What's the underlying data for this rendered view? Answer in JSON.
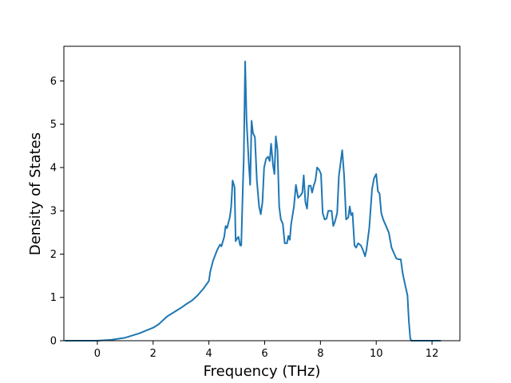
{
  "chart_data": {
    "type": "line",
    "title": "",
    "xlabel": "Frequency (THz)",
    "ylabel": "Density of States",
    "xlim": [
      -1.2,
      13.0
    ],
    "ylim": [
      0,
      6.8
    ],
    "x_ticks": [
      0,
      2,
      4,
      6,
      8,
      10,
      12
    ],
    "y_ticks": [
      0,
      1,
      2,
      3,
      4,
      5,
      6
    ],
    "grid": false,
    "legend": "none",
    "series": [
      {
        "color": "#1f77b4",
        "points": [
          [
            -1.15,
            0.0
          ],
          [
            -0.5,
            0.0
          ],
          [
            0.0,
            0.0
          ],
          [
            0.5,
            0.02
          ],
          [
            1.0,
            0.07
          ],
          [
            1.5,
            0.17
          ],
          [
            2.0,
            0.3
          ],
          [
            2.2,
            0.38
          ],
          [
            2.5,
            0.56
          ],
          [
            2.8,
            0.68
          ],
          [
            3.0,
            0.76
          ],
          [
            3.2,
            0.85
          ],
          [
            3.4,
            0.93
          ],
          [
            3.6,
            1.05
          ],
          [
            3.8,
            1.2
          ],
          [
            4.0,
            1.38
          ],
          [
            4.05,
            1.6
          ],
          [
            4.15,
            1.85
          ],
          [
            4.3,
            2.1
          ],
          [
            4.4,
            2.22
          ],
          [
            4.45,
            2.18
          ],
          [
            4.55,
            2.4
          ],
          [
            4.6,
            2.65
          ],
          [
            4.65,
            2.6
          ],
          [
            4.75,
            2.85
          ],
          [
            4.8,
            3.1
          ],
          [
            4.85,
            3.7
          ],
          [
            4.92,
            3.55
          ],
          [
            4.96,
            2.3
          ],
          [
            5.0,
            2.35
          ],
          [
            5.06,
            2.4
          ],
          [
            5.12,
            2.2
          ],
          [
            5.16,
            2.2
          ],
          [
            5.22,
            3.6
          ],
          [
            5.25,
            4.2
          ],
          [
            5.3,
            6.45
          ],
          [
            5.35,
            5.1
          ],
          [
            5.43,
            4.1
          ],
          [
            5.48,
            3.6
          ],
          [
            5.53,
            5.08
          ],
          [
            5.58,
            4.8
          ],
          [
            5.65,
            4.7
          ],
          [
            5.72,
            3.7
          ],
          [
            5.8,
            3.1
          ],
          [
            5.86,
            2.92
          ],
          [
            5.92,
            3.2
          ],
          [
            5.98,
            4.0
          ],
          [
            6.05,
            4.2
          ],
          [
            6.12,
            4.25
          ],
          [
            6.18,
            4.15
          ],
          [
            6.23,
            4.55
          ],
          [
            6.3,
            4.05
          ],
          [
            6.35,
            3.85
          ],
          [
            6.4,
            4.72
          ],
          [
            6.46,
            4.4
          ],
          [
            6.52,
            3.1
          ],
          [
            6.58,
            2.8
          ],
          [
            6.65,
            2.7
          ],
          [
            6.72,
            2.25
          ],
          [
            6.8,
            2.25
          ],
          [
            6.85,
            2.42
          ],
          [
            6.9,
            2.33
          ],
          [
            6.95,
            2.7
          ],
          [
            7.05,
            3.1
          ],
          [
            7.12,
            3.6
          ],
          [
            7.2,
            3.3
          ],
          [
            7.28,
            3.35
          ],
          [
            7.35,
            3.42
          ],
          [
            7.4,
            3.82
          ],
          [
            7.46,
            3.2
          ],
          [
            7.52,
            3.05
          ],
          [
            7.58,
            3.58
          ],
          [
            7.65,
            3.58
          ],
          [
            7.7,
            3.42
          ],
          [
            7.76,
            3.58
          ],
          [
            7.82,
            3.7
          ],
          [
            7.88,
            4.0
          ],
          [
            7.95,
            3.95
          ],
          [
            8.02,
            3.85
          ],
          [
            8.08,
            2.95
          ],
          [
            8.15,
            2.8
          ],
          [
            8.22,
            2.82
          ],
          [
            8.28,
            3.0
          ],
          [
            8.35,
            3.0
          ],
          [
            8.4,
            3.0
          ],
          [
            8.46,
            2.65
          ],
          [
            8.52,
            2.75
          ],
          [
            8.6,
            2.95
          ],
          [
            8.66,
            3.8
          ],
          [
            8.72,
            4.1
          ],
          [
            8.78,
            4.4
          ],
          [
            8.85,
            3.8
          ],
          [
            8.92,
            2.8
          ],
          [
            9.0,
            2.85
          ],
          [
            9.05,
            3.1
          ],
          [
            9.1,
            2.9
          ],
          [
            9.15,
            2.95
          ],
          [
            9.22,
            2.2
          ],
          [
            9.28,
            2.15
          ],
          [
            9.35,
            2.25
          ],
          [
            9.45,
            2.2
          ],
          [
            9.52,
            2.1
          ],
          [
            9.6,
            1.95
          ],
          [
            9.65,
            2.1
          ],
          [
            9.75,
            2.6
          ],
          [
            9.85,
            3.5
          ],
          [
            9.92,
            3.75
          ],
          [
            10.0,
            3.85
          ],
          [
            10.06,
            3.45
          ],
          [
            10.12,
            3.4
          ],
          [
            10.18,
            2.95
          ],
          [
            10.25,
            2.8
          ],
          [
            10.35,
            2.65
          ],
          [
            10.45,
            2.5
          ],
          [
            10.55,
            2.15
          ],
          [
            10.65,
            2.0
          ],
          [
            10.72,
            1.9
          ],
          [
            10.8,
            1.88
          ],
          [
            10.88,
            1.88
          ],
          [
            10.95,
            1.55
          ],
          [
            11.05,
            1.25
          ],
          [
            11.12,
            1.05
          ],
          [
            11.17,
            0.45
          ],
          [
            11.22,
            0.05
          ],
          [
            11.26,
            0.0
          ],
          [
            11.6,
            0.0
          ],
          [
            12.3,
            0.0
          ]
        ]
      }
    ]
  }
}
